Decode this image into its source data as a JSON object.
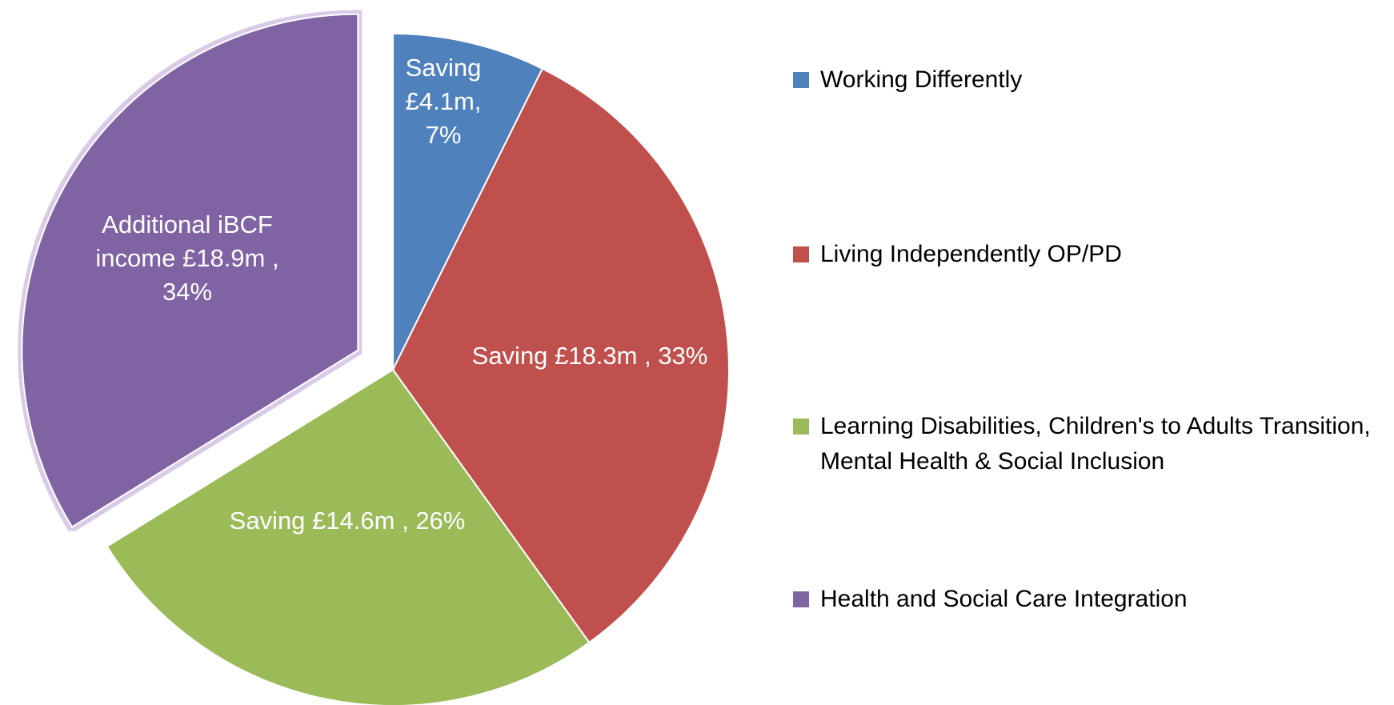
{
  "chart_data": {
    "type": "pie",
    "categories": [
      "Working Differently",
      "Living Independently OP/PD",
      "Learning Disabilities, Children's to Adults Transition, Mental Health & Social Inclusion",
      "Health and Social Care Integration"
    ],
    "values": [
      4.1,
      18.3,
      14.6,
      18.9
    ],
    "value_labels": [
      "£4.1m,",
      "£18.3m ,",
      "£14.6m ,",
      "£18.9m ,"
    ],
    "label_names": [
      "Saving",
      "Saving",
      "Saving",
      "Additional iBCF income"
    ],
    "percentages": [
      7,
      33,
      26,
      34
    ],
    "percent_labels": [
      "7%",
      "33%",
      "26%",
      "34%"
    ],
    "colors": [
      "#4f81bd",
      "#c0504d",
      "#9bbb59",
      "#8064a2"
    ],
    "explode": [
      false,
      false,
      false,
      true
    ],
    "legend": "right"
  }
}
